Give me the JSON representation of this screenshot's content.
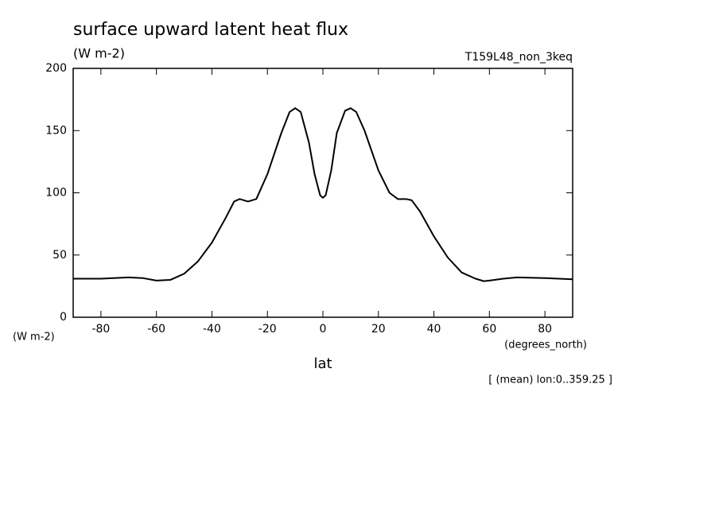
{
  "chart_data": {
    "type": "line",
    "title": "surface upward latent heat flux",
    "subtitle": "(W m-2)",
    "run_label": "T159L48_non_3keq",
    "y_unit_label": "(W m-2)",
    "x_unit_label": "(degrees_north)",
    "xlabel": "lat",
    "annotation": "[ (mean) lon:0..359.25 ]",
    "color": "#000000",
    "x": [
      -90,
      -80,
      -70,
      -65,
      -60,
      -55,
      -50,
      -45,
      -40,
      -35,
      -32,
      -30,
      -27,
      -24,
      -20,
      -15,
      -12,
      -10,
      -8,
      -5,
      -3,
      -1,
      0,
      1,
      3,
      5,
      8,
      10,
      12,
      15,
      20,
      24,
      27,
      30,
      32,
      35,
      40,
      45,
      50,
      55,
      58,
      60,
      65,
      70,
      80,
      90
    ],
    "values": [
      31,
      31,
      32,
      31.5,
      29.5,
      30,
      35,
      45,
      60,
      80,
      93,
      95,
      93,
      95,
      115,
      148,
      165,
      168,
      165,
      140,
      115,
      98,
      96,
      98,
      118,
      148,
      166,
      168,
      165,
      150,
      118,
      100,
      95,
      95,
      94,
      85,
      65,
      48,
      36,
      31,
      29,
      29.5,
      31,
      32,
      31.5,
      30.5
    ],
    "xlim": [
      -90,
      90
    ],
    "xticks": [
      -80,
      -60,
      -40,
      -20,
      0,
      20,
      40,
      60,
      80
    ],
    "ylim": [
      0,
      200
    ],
    "yticks": [
      0,
      50,
      100,
      150,
      200
    ]
  }
}
